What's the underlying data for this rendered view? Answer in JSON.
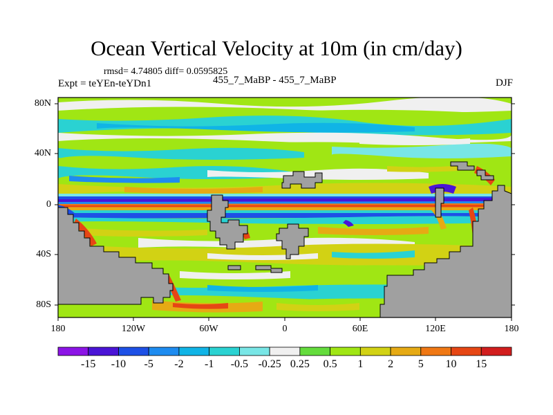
{
  "title": "Ocean Vertical Velocity at 10m (in cm/day)",
  "stats_text": "rmsd= 4.74805 diff= 0.0595825",
  "expt_text": "Expt = teYEn-teYDn1",
  "runs_text": "455_7_MaBP - 455_7_MaBP",
  "season": "DJF",
  "colors": {
    "land": "#a0a0a0",
    "frame": "#000000"
  },
  "axes": {
    "lat_labels": [
      "80N",
      "40N",
      "0",
      "40S",
      "80S"
    ],
    "lat_values": [
      80,
      40,
      0,
      -40,
      -80
    ],
    "lon_labels": [
      "180",
      "120W",
      "60W",
      "0",
      "60E",
      "120E",
      "180"
    ],
    "lon_values": [
      -180,
      -120,
      -60,
      0,
      60,
      120,
      180
    ]
  },
  "colorbar": {
    "labels": [
      "-15",
      "-10",
      "-5",
      "-2",
      "-1",
      "-0.5",
      "-0.25",
      "0.25",
      "0.5",
      "1",
      "2",
      "5",
      "10",
      "15"
    ],
    "colors": [
      "#8c14e6",
      "#4a14d6",
      "#1e50e6",
      "#1e8cf0",
      "#10b4e6",
      "#2ad2d2",
      "#78e6e6",
      "#f0f0f0",
      "#64dc3c",
      "#a0e614",
      "#d2d214",
      "#e6aa14",
      "#f07814",
      "#e64614",
      "#d21e1e"
    ]
  }
}
